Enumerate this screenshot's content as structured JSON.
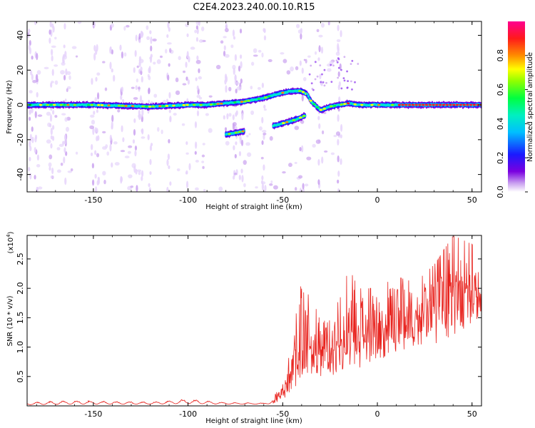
{
  "title": "C2E4.2023.240.00.10.R15",
  "chart_data": [
    {
      "type": "heatmap",
      "xlabel": "Height of straight line (km)",
      "ylabel": "Frequency (Hz)",
      "xlim": [
        -185,
        55
      ],
      "ylim": [
        -50,
        48
      ],
      "xticks": [
        -150,
        -100,
        -50,
        0,
        50
      ],
      "yticks": [
        -40,
        -20,
        0,
        20,
        40
      ],
      "colorbar": {
        "label": "Normalized spectral amplitude",
        "range": [
          0,
          1
        ],
        "ticks": [
          0.0,
          0.2,
          0.4,
          0.6,
          0.8
        ]
      },
      "ridges": [
        {
          "x": [
            -185,
            -150,
            -120,
            -100,
            -90,
            -80,
            -70,
            -60,
            -50,
            -45,
            -40,
            -37
          ],
          "y": [
            0,
            0,
            -1,
            0,
            0,
            1,
            2,
            4,
            7,
            8,
            8,
            6
          ]
        },
        {
          "x": [
            -37,
            -35,
            -30,
            -25,
            -20,
            -15,
            -10,
            0,
            10,
            20,
            30,
            40,
            55
          ],
          "y": [
            6,
            2,
            -3,
            -1,
            0,
            1,
            0,
            0,
            0,
            0,
            0,
            0,
            0
          ]
        },
        {
          "x": [
            -38,
            -42,
            -48,
            -55
          ],
          "y": [
            -6,
            -8,
            -10,
            -12
          ]
        },
        {
          "x": [
            -70,
            -80
          ],
          "y": [
            -15,
            -17
          ]
        }
      ]
    },
    {
      "type": "line",
      "xlabel": "Height of straight line (km)",
      "ylabel": "SNR (10 * v/v)",
      "y_multiplier": "(x10",
      "y_multiplier_exp": "4",
      "xlim": [
        -185,
        55
      ],
      "ylim": [
        0,
        2.9
      ],
      "xticks": [
        -150,
        -100,
        -50,
        0,
        50
      ],
      "yticks": [
        0.5,
        1.0,
        1.5,
        2.0,
        2.5
      ],
      "color": "#e8231e",
      "envelope": {
        "x": [
          -185,
          -160,
          -140,
          -120,
          -100,
          -80,
          -60,
          -55,
          -50,
          -45,
          -40,
          -35,
          -30,
          -25,
          -20,
          -15,
          -10,
          -5,
          0,
          10,
          20,
          30,
          40,
          50,
          55
        ],
        "base": [
          0.02,
          0.03,
          0.03,
          0.03,
          0.04,
          0.03,
          0.03,
          0.04,
          0.1,
          0.25,
          0.45,
          0.55,
          0.5,
          0.5,
          0.55,
          0.45,
          0.6,
          0.7,
          0.8,
          0.85,
          1.0,
          1.05,
          1.2,
          1.4,
          1.5
        ],
        "peak": [
          0.06,
          0.1,
          0.08,
          0.07,
          0.12,
          0.06,
          0.05,
          0.12,
          0.5,
          1.0,
          2.35,
          1.7,
          1.6,
          1.6,
          1.8,
          2.35,
          2.0,
          2.0,
          2.0,
          2.2,
          2.1,
          2.4,
          2.9,
          2.75,
          2.5
        ]
      }
    }
  ]
}
